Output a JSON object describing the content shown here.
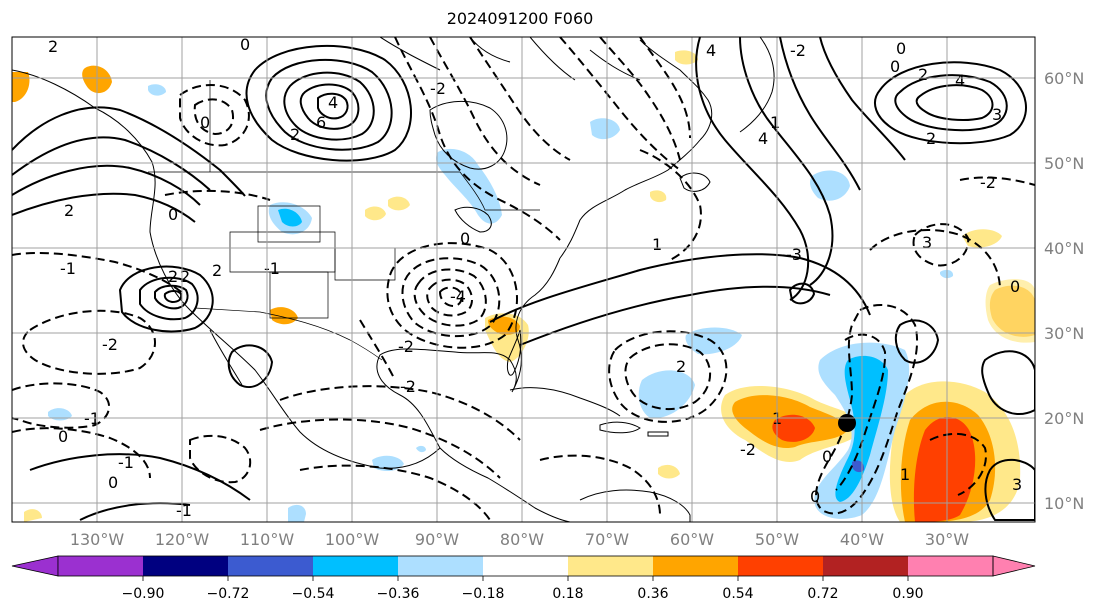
{
  "title": "2024091200 F060",
  "map": {
    "lon_labels": [
      "130°W",
      "120°W",
      "110°W",
      "100°W",
      "90°W",
      "80°W",
      "70°W",
      "60°W",
      "50°W",
      "40°W",
      "30°W"
    ],
    "lat_labels": [
      "60°N",
      "50°N",
      "40°N",
      "30°N",
      "20°N",
      "10°N"
    ],
    "contour_labels": [
      "2",
      "0",
      "6",
      "4",
      "2",
      "0",
      "-2",
      "-1",
      "0",
      "2",
      "4",
      "1",
      "-1",
      "-4",
      "2",
      "0",
      "-2",
      "1",
      "0",
      "-2",
      "4",
      "-2",
      "2",
      "0",
      "-3",
      "3",
      "2",
      "-2",
      "4",
      "1",
      "3",
      "-2",
      "2",
      "0",
      "3",
      "0",
      "-1",
      "-1",
      "0",
      "2",
      "-2",
      "2",
      "-1",
      "0",
      "1",
      "0"
    ],
    "track_marker": "storm-center"
  },
  "colorbar": {
    "ticks": [
      "−0.90",
      "−0.72",
      "−0.54",
      "−0.36",
      "−0.18",
      "0.18",
      "0.36",
      "0.54",
      "0.72",
      "0.90"
    ],
    "colors": [
      "#9b30d0",
      "#000080",
      "#3c5bd0",
      "#00bfff",
      "#addfff",
      "#ffffff",
      "#ffe88a",
      "#ffa500",
      "#ff4000",
      "#b22222",
      "#ff80b0"
    ]
  }
}
